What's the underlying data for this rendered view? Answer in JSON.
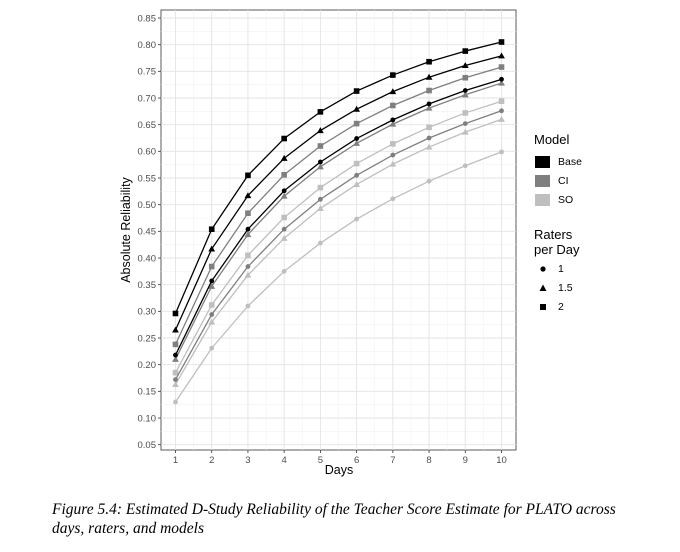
{
  "chart_data": {
    "type": "line",
    "title": "",
    "xlabel": "Days",
    "ylabel": "Absolute Reliability",
    "xlim": [
      0.6,
      10.4
    ],
    "ylim": [
      0.04,
      0.865
    ],
    "xticks": [
      "1",
      "2",
      "3",
      "4",
      "5",
      "6",
      "7",
      "8",
      "9",
      "10"
    ],
    "yticks": [
      "0.05",
      "0.10",
      "0.15",
      "0.20",
      "0.25",
      "0.30",
      "0.35",
      "0.40",
      "0.45",
      "0.50",
      "0.55",
      "0.60",
      "0.65",
      "0.70",
      "0.75",
      "0.80",
      "0.85"
    ],
    "grid": true,
    "legend_position": "right",
    "x": [
      1,
      2,
      3,
      4,
      5,
      6,
      7,
      8,
      9,
      10
    ],
    "series": [
      {
        "model": "Base",
        "raters": "2",
        "values": [
          0.296,
          0.454,
          0.555,
          0.624,
          0.674,
          0.713,
          0.743,
          0.768,
          0.788,
          0.805
        ]
      },
      {
        "model": "Base",
        "raters": "1.5",
        "values": [
          0.265,
          0.417,
          0.517,
          0.587,
          0.639,
          0.679,
          0.712,
          0.739,
          0.761,
          0.779
        ]
      },
      {
        "model": "Base",
        "raters": "1",
        "values": [
          0.218,
          0.357,
          0.454,
          0.526,
          0.58,
          0.624,
          0.659,
          0.689,
          0.714,
          0.735
        ]
      },
      {
        "model": "CI",
        "raters": "2",
        "values": [
          0.238,
          0.384,
          0.484,
          0.556,
          0.61,
          0.652,
          0.686,
          0.714,
          0.738,
          0.758
        ]
      },
      {
        "model": "CI",
        "raters": "1.5",
        "values": [
          0.21,
          0.347,
          0.444,
          0.516,
          0.571,
          0.615,
          0.651,
          0.681,
          0.706,
          0.728
        ]
      },
      {
        "model": "CI",
        "raters": "1",
        "values": [
          0.172,
          0.294,
          0.384,
          0.454,
          0.51,
          0.555,
          0.593,
          0.625,
          0.652,
          0.676
        ]
      },
      {
        "model": "SO",
        "raters": "2",
        "values": [
          0.185,
          0.312,
          0.405,
          0.476,
          0.532,
          0.577,
          0.614,
          0.645,
          0.672,
          0.694
        ]
      },
      {
        "model": "SO",
        "raters": "1.5",
        "values": [
          0.163,
          0.28,
          0.368,
          0.437,
          0.493,
          0.538,
          0.576,
          0.608,
          0.636,
          0.66
        ]
      },
      {
        "model": "SO",
        "raters": "1",
        "values": [
          0.13,
          0.231,
          0.31,
          0.375,
          0.428,
          0.473,
          0.511,
          0.544,
          0.573,
          0.599
        ]
      }
    ],
    "legend": {
      "model_title": "Model",
      "models": [
        {
          "label": "Base",
          "color": "#000000"
        },
        {
          "label": "CI",
          "color": "#7f7f7f"
        },
        {
          "label": "SO",
          "color": "#bfbfbf"
        }
      ],
      "raters_title_line1": "Raters",
      "raters_title_line2": "per Day",
      "raters": [
        {
          "label": "1",
          "shape": "circle"
        },
        {
          "label": "1.5",
          "shape": "triangle"
        },
        {
          "label": "2",
          "shape": "square"
        }
      ]
    }
  },
  "caption": {
    "line1": "Figure 5.4: Estimated D-Study Reliability of the Teacher Score Estimate for PLATO across",
    "line2": "days, raters, and models"
  }
}
